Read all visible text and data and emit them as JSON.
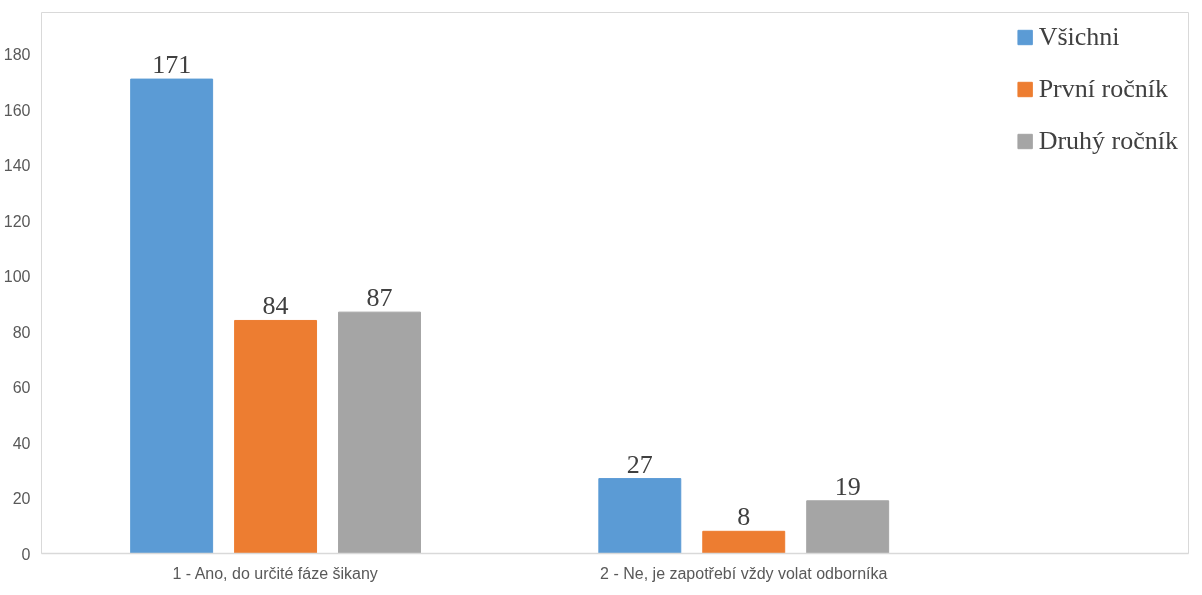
{
  "chart_data": {
    "type": "bar",
    "categories": [
      "1 - Ano, do určité fáze šikany",
      "2 - Ne, je zapotřebí vždy volat odborníka"
    ],
    "series": [
      {
        "name": "Všichni",
        "color": "#5b9bd5",
        "values": [
          171,
          27
        ]
      },
      {
        "name": "První ročník",
        "color": "#ed7d31",
        "values": [
          84,
          8
        ]
      },
      {
        "name": "Druhý ročník",
        "color": "#a5a5a5",
        "values": [
          87,
          19
        ]
      }
    ],
    "ylim": [
      0,
      195
    ],
    "yticks": [
      0,
      20,
      40,
      60,
      80,
      100,
      120,
      140,
      160,
      180
    ],
    "grid": false,
    "legend": "top right",
    "data_labels": true
  }
}
